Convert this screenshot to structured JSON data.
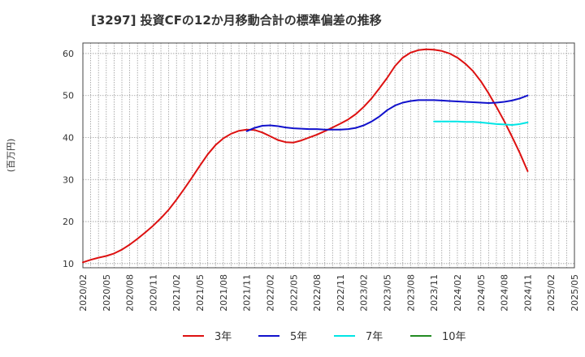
{
  "chart_data": {
    "type": "line",
    "title": "[3297]  投資CFの12か月移動合計の標準偏差の推移",
    "ylabel": "(百万円)",
    "xlabel": "",
    "ylim": [
      9,
      62.5
    ],
    "xlim": [
      "2020/02",
      "2025/05"
    ],
    "yticks": [
      10,
      20,
      30,
      40,
      50,
      60
    ],
    "xticks": [
      "2020/02",
      "2020/05",
      "2020/08",
      "2020/11",
      "2021/02",
      "2021/05",
      "2021/08",
      "2021/11",
      "2022/02",
      "2022/05",
      "2022/08",
      "2022/11",
      "2023/02",
      "2023/05",
      "2023/08",
      "2023/11",
      "2024/02",
      "2024/05",
      "2024/08",
      "2024/11",
      "2025/02",
      "2025/05"
    ],
    "grid": true,
    "legend_position": "bottom",
    "series": [
      {
        "name": "3年",
        "color": "#dd1111",
        "points": [
          [
            "2020/02",
            10.3
          ],
          [
            "2020/03",
            10.9
          ],
          [
            "2020/04",
            11.4
          ],
          [
            "2020/05",
            11.8
          ],
          [
            "2020/06",
            12.4
          ],
          [
            "2020/07",
            13.3
          ],
          [
            "2020/08",
            14.5
          ],
          [
            "2020/09",
            15.9
          ],
          [
            "2020/10",
            17.4
          ],
          [
            "2020/11",
            19.0
          ],
          [
            "2020/12",
            20.8
          ],
          [
            "2021/01",
            22.8
          ],
          [
            "2021/02",
            25.2
          ],
          [
            "2021/03",
            27.8
          ],
          [
            "2021/04",
            30.5
          ],
          [
            "2021/05",
            33.3
          ],
          [
            "2021/06",
            36.0
          ],
          [
            "2021/07",
            38.2
          ],
          [
            "2021/08",
            39.8
          ],
          [
            "2021/09",
            40.9
          ],
          [
            "2021/10",
            41.6
          ],
          [
            "2021/11",
            41.9
          ],
          [
            "2021/12",
            41.8
          ],
          [
            "2022/01",
            41.2
          ],
          [
            "2022/02",
            40.3
          ],
          [
            "2022/03",
            39.4
          ],
          [
            "2022/04",
            38.9
          ],
          [
            "2022/05",
            38.8
          ],
          [
            "2022/06",
            39.3
          ],
          [
            "2022/07",
            40.0
          ],
          [
            "2022/08",
            40.7
          ],
          [
            "2022/09",
            41.5
          ],
          [
            "2022/10",
            42.4
          ],
          [
            "2022/11",
            43.3
          ],
          [
            "2022/12",
            44.3
          ],
          [
            "2023/01",
            45.6
          ],
          [
            "2023/02",
            47.3
          ],
          [
            "2023/03",
            49.3
          ],
          [
            "2023/04",
            51.7
          ],
          [
            "2023/05",
            54.2
          ],
          [
            "2023/06",
            57.0
          ],
          [
            "2023/07",
            59.0
          ],
          [
            "2023/08",
            60.2
          ],
          [
            "2023/09",
            60.8
          ],
          [
            "2023/10",
            61.0
          ],
          [
            "2023/11",
            60.9
          ],
          [
            "2023/12",
            60.6
          ],
          [
            "2024/01",
            60.0
          ],
          [
            "2024/02",
            59.0
          ],
          [
            "2024/03",
            57.6
          ],
          [
            "2024/04",
            55.8
          ],
          [
            "2024/05",
            53.4
          ],
          [
            "2024/06",
            50.5
          ],
          [
            "2024/07",
            47.3
          ],
          [
            "2024/08",
            43.9
          ],
          [
            "2024/09",
            40.2
          ],
          [
            "2024/10",
            36.3
          ],
          [
            "2024/11",
            32.0
          ]
        ]
      },
      {
        "name": "5年",
        "color": "#1111cc",
        "points": [
          [
            "2021/11",
            41.5
          ],
          [
            "2021/12",
            42.3
          ],
          [
            "2022/01",
            42.8
          ],
          [
            "2022/02",
            42.9
          ],
          [
            "2022/03",
            42.7
          ],
          [
            "2022/04",
            42.4
          ],
          [
            "2022/05",
            42.2
          ],
          [
            "2022/06",
            42.1
          ],
          [
            "2022/07",
            42.0
          ],
          [
            "2022/08",
            42.0
          ],
          [
            "2022/09",
            41.9
          ],
          [
            "2022/10",
            41.9
          ],
          [
            "2022/11",
            41.9
          ],
          [
            "2022/12",
            42.0
          ],
          [
            "2023/01",
            42.3
          ],
          [
            "2023/02",
            42.9
          ],
          [
            "2023/03",
            43.8
          ],
          [
            "2023/04",
            45.0
          ],
          [
            "2023/05",
            46.5
          ],
          [
            "2023/06",
            47.6
          ],
          [
            "2023/07",
            48.3
          ],
          [
            "2023/08",
            48.7
          ],
          [
            "2023/09",
            48.9
          ],
          [
            "2023/10",
            48.9
          ],
          [
            "2023/11",
            48.9
          ],
          [
            "2023/12",
            48.8
          ],
          [
            "2024/01",
            48.7
          ],
          [
            "2024/02",
            48.6
          ],
          [
            "2024/03",
            48.5
          ],
          [
            "2024/04",
            48.4
          ],
          [
            "2024/05",
            48.3
          ],
          [
            "2024/06",
            48.2
          ],
          [
            "2024/07",
            48.3
          ],
          [
            "2024/08",
            48.5
          ],
          [
            "2024/09",
            48.8
          ],
          [
            "2024/10",
            49.3
          ],
          [
            "2024/11",
            50.0
          ]
        ]
      },
      {
        "name": "7年",
        "color": "#00e5e5",
        "points": [
          [
            "2023/11",
            43.8
          ],
          [
            "2023/12",
            43.8
          ],
          [
            "2024/01",
            43.8
          ],
          [
            "2024/02",
            43.8
          ],
          [
            "2024/03",
            43.7
          ],
          [
            "2024/04",
            43.7
          ],
          [
            "2024/05",
            43.6
          ],
          [
            "2024/06",
            43.4
          ],
          [
            "2024/07",
            43.2
          ],
          [
            "2024/08",
            43.1
          ],
          [
            "2024/09",
            43.0
          ],
          [
            "2024/10",
            43.2
          ],
          [
            "2024/11",
            43.6
          ]
        ]
      },
      {
        "name": "10年",
        "color": "#228b22",
        "points": []
      }
    ]
  }
}
